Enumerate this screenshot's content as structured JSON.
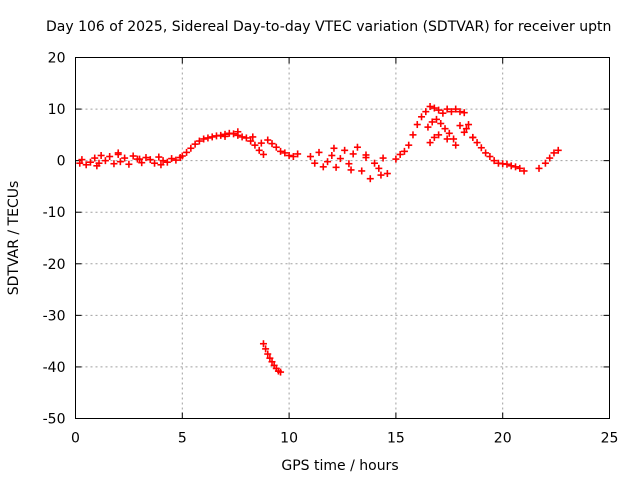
{
  "chart_data": {
    "type": "scatter",
    "title": "Day 106 of 2025, Sidereal Day-to-day VTEC variation (SDTVAR) for receiver uptn",
    "xlabel": "GPS time / hours",
    "ylabel": "SDTVAR / TECUs",
    "xlim": [
      0,
      25
    ],
    "ylim": [
      -50,
      20
    ],
    "xticks": [
      0,
      5,
      10,
      15,
      20,
      25
    ],
    "yticks": [
      -50,
      -40,
      -30,
      -20,
      -10,
      0,
      10,
      20
    ],
    "xtick_labels": [
      "0",
      "5",
      "10",
      "15",
      "20",
      "25"
    ],
    "ytick_labels": [
      "-50",
      "-40",
      "-30",
      "-20",
      "-10",
      "0",
      "10",
      "20"
    ],
    "grid": true,
    "marker": "plus",
    "color": "#ff0000",
    "series": [
      {
        "name": "SDTVAR",
        "x": [
          0.2,
          0.3,
          0.5,
          0.7,
          0.9,
          1.1,
          1.2,
          1.4,
          1.6,
          1.8,
          2.0,
          2.1,
          2.3,
          2.5,
          2.7,
          2.9,
          3.1,
          3.3,
          3.5,
          3.7,
          3.9,
          4.1,
          4.3,
          4.5,
          4.7,
          4.9,
          5.0,
          5.2,
          5.4,
          5.6,
          5.8,
          6.0,
          6.2,
          6.4,
          6.6,
          6.8,
          7.0,
          7.2,
          7.4,
          7.6,
          7.8,
          8.0,
          8.2,
          8.4,
          8.6,
          8.8,
          9.0,
          9.2,
          9.4,
          9.6,
          9.8,
          10.0,
          10.2,
          10.4,
          11.0,
          11.2,
          11.4,
          11.6,
          11.8,
          12.0,
          12.2,
          12.4,
          12.6,
          12.8,
          13.0,
          13.2,
          13.4,
          13.6,
          13.8,
          14.0,
          14.2,
          14.4,
          14.6,
          15.0,
          15.2,
          15.4,
          15.6,
          15.8,
          16.0,
          16.2,
          16.4,
          16.6,
          16.8,
          17.0,
          17.2,
          17.4,
          17.6,
          17.8,
          18.0,
          18.2,
          18.4,
          18.6,
          18.8,
          19.0,
          19.2,
          19.4,
          19.6,
          19.8,
          20.0,
          20.2,
          20.4,
          20.6,
          20.8,
          21.0,
          21.7,
          22.0,
          22.2,
          22.4,
          22.6,
          16.5,
          16.7,
          16.9,
          17.1,
          17.3,
          17.5,
          17.7,
          18.0,
          18.3,
          16.6,
          16.8,
          17.0,
          17.4,
          17.8,
          18.2,
          18.6,
          8.8,
          8.9,
          9.0,
          9.1,
          9.2,
          9.3,
          9.4,
          9.5,
          9.6,
          1.0,
          2.0,
          3.0,
          4.0,
          12.1,
          12.9,
          13.6,
          14.3,
          7.0,
          7.6,
          8.3,
          8.7
        ],
        "y": [
          -0.5,
          0.2,
          -0.8,
          -0.3,
          0.5,
          -0.5,
          1.0,
          0.0,
          0.8,
          -0.6,
          1.2,
          -0.2,
          0.5,
          -0.7,
          0.9,
          0.3,
          -0.4,
          0.6,
          0.2,
          -0.5,
          0.7,
          0.0,
          -0.3,
          0.4,
          0.1,
          0.6,
          0.9,
          1.6,
          2.4,
          3.2,
          3.8,
          4.2,
          4.4,
          4.6,
          4.8,
          4.9,
          5.1,
          5.3,
          5.2,
          4.9,
          4.6,
          4.4,
          3.8,
          3.0,
          2.0,
          1.2,
          4.0,
          3.3,
          2.6,
          1.8,
          1.5,
          1.0,
          0.8,
          1.3,
          0.8,
          -0.5,
          1.6,
          -1.2,
          -0.2,
          1.0,
          -1.3,
          0.4,
          2.0,
          -0.6,
          1.3,
          2.6,
          -2.0,
          0.6,
          -3.5,
          -0.5,
          -1.5,
          0.5,
          -2.5,
          0.3,
          1.2,
          1.8,
          3.0,
          5.0,
          7.0,
          8.5,
          9.5,
          10.5,
          10.2,
          9.8,
          9.2,
          10.0,
          9.5,
          10.0,
          9.5,
          9.3,
          7.0,
          4.5,
          3.5,
          2.5,
          1.5,
          0.8,
          0.0,
          -0.5,
          -0.6,
          -0.7,
          -1.0,
          -1.2,
          -1.5,
          -2.0,
          -1.5,
          -0.5,
          0.5,
          1.5,
          2.0,
          6.5,
          7.5,
          8.0,
          7.2,
          6.2,
          5.3,
          4.2,
          6.8,
          6.2,
          3.5,
          4.5,
          5.0,
          4.2,
          3.0,
          5.5,
          4.5,
          -35.5,
          -36.5,
          -37.5,
          -38.3,
          -39.0,
          -39.7,
          -40.3,
          -40.8,
          -41.0,
          -1.0,
          1.5,
          0.3,
          -0.8,
          2.4,
          -1.8,
          1.1,
          -2.8,
          4.7,
          5.6,
          4.6,
          3.4
        ]
      }
    ]
  }
}
